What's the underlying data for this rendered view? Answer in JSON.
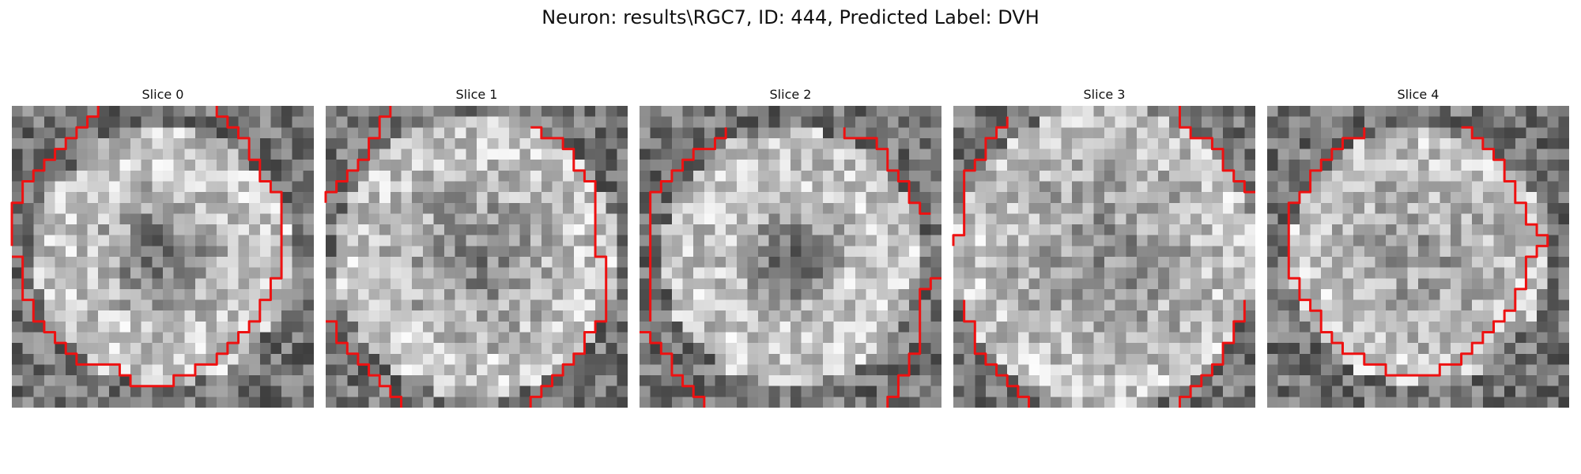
{
  "title": "Neuron: results\\RGC7, ID: 444, Predicted Label: DVH",
  "contour_color": "#ee1111",
  "grid_size": 28,
  "slices": [
    {
      "label": "Slice 0",
      "ring": {
        "inner": 7,
        "outer": 12,
        "dark": 0.35
      },
      "contour": [
        [
          [
            8,
            0
          ],
          [
            8,
            1
          ],
          [
            7,
            1
          ],
          [
            7,
            2
          ],
          [
            6,
            2
          ],
          [
            6,
            3
          ],
          [
            5,
            3
          ],
          [
            5,
            4
          ],
          [
            4,
            4
          ],
          [
            4,
            5
          ],
          [
            3,
            5
          ],
          [
            3,
            6
          ],
          [
            2,
            6
          ],
          [
            2,
            7
          ],
          [
            1,
            7
          ],
          [
            1,
            9
          ],
          [
            0,
            9
          ],
          [
            0,
            12
          ],
          [
            0,
            13
          ]
        ],
        [
          [
            0,
            14
          ],
          [
            1,
            14
          ],
          [
            1,
            18
          ],
          [
            2,
            18
          ],
          [
            2,
            20
          ],
          [
            3,
            20
          ],
          [
            3,
            21
          ],
          [
            4,
            21
          ],
          [
            4,
            22
          ],
          [
            5,
            22
          ],
          [
            5,
            23
          ],
          [
            6,
            23
          ],
          [
            6,
            24
          ],
          [
            7,
            24
          ],
          [
            8,
            24
          ],
          [
            9,
            24
          ],
          [
            10,
            24
          ],
          [
            10,
            25
          ],
          [
            11,
            25
          ],
          [
            11,
            26
          ],
          [
            14,
            26
          ],
          [
            15,
            26
          ],
          [
            15,
            25
          ],
          [
            17,
            25
          ],
          [
            17,
            24
          ],
          [
            19,
            24
          ],
          [
            19,
            23
          ],
          [
            20,
            23
          ],
          [
            20,
            22
          ],
          [
            21,
            22
          ],
          [
            21,
            21
          ],
          [
            22,
            21
          ],
          [
            22,
            20
          ],
          [
            23,
            20
          ],
          [
            23,
            18
          ],
          [
            24,
            18
          ],
          [
            24,
            16
          ],
          [
            25,
            16
          ],
          [
            25,
            8
          ],
          [
            24,
            8
          ],
          [
            24,
            7
          ],
          [
            23,
            7
          ],
          [
            23,
            5
          ],
          [
            22,
            5
          ],
          [
            22,
            3
          ],
          [
            21,
            3
          ],
          [
            21,
            2
          ],
          [
            20,
            2
          ],
          [
            20,
            1
          ],
          [
            19,
            1
          ],
          [
            19,
            0
          ]
        ]
      ]
    },
    {
      "label": "Slice 1",
      "ring": {
        "inner": 9,
        "outer": 13,
        "dark": 0.25
      },
      "contour": [
        [
          [
            6,
            0
          ],
          [
            6,
            1
          ],
          [
            5,
            1
          ],
          [
            5,
            3
          ],
          [
            4,
            3
          ],
          [
            4,
            5
          ],
          [
            3,
            5
          ],
          [
            3,
            6
          ],
          [
            2,
            6
          ],
          [
            2,
            7
          ],
          [
            1,
            7
          ],
          [
            1,
            8
          ],
          [
            0,
            8
          ],
          [
            0,
            9
          ]
        ],
        [
          [
            19,
            2
          ],
          [
            20,
            2
          ],
          [
            20,
            3
          ],
          [
            22,
            3
          ],
          [
            22,
            4
          ],
          [
            23,
            4
          ],
          [
            23,
            6
          ],
          [
            24,
            6
          ],
          [
            24,
            7
          ],
          [
            25,
            7
          ],
          [
            25,
            14
          ],
          [
            26,
            14
          ],
          [
            26,
            20
          ],
          [
            25,
            20
          ],
          [
            25,
            21
          ],
          [
            24,
            21
          ],
          [
            24,
            23
          ],
          [
            23,
            23
          ],
          [
            23,
            24
          ],
          [
            22,
            24
          ],
          [
            22,
            25
          ],
          [
            21,
            25
          ],
          [
            21,
            26
          ],
          [
            20,
            26
          ],
          [
            20,
            27
          ],
          [
            19,
            27
          ],
          [
            19,
            28
          ]
        ],
        [
          [
            0,
            20
          ],
          [
            1,
            20
          ],
          [
            1,
            22
          ],
          [
            2,
            22
          ],
          [
            2,
            23
          ],
          [
            3,
            23
          ],
          [
            3,
            24
          ],
          [
            4,
            24
          ],
          [
            4,
            25
          ],
          [
            5,
            25
          ],
          [
            5,
            26
          ],
          [
            6,
            26
          ],
          [
            6,
            27
          ],
          [
            7,
            27
          ],
          [
            7,
            28
          ]
        ]
      ]
    },
    {
      "label": "Slice 2",
      "ring": {
        "inner": 6,
        "outer": 12,
        "dark": 0.4
      },
      "contour": [
        [
          [
            8,
            2
          ],
          [
            8,
            3
          ],
          [
            7,
            3
          ],
          [
            7,
            4
          ],
          [
            5,
            4
          ],
          [
            5,
            5
          ],
          [
            4,
            5
          ],
          [
            4,
            6
          ],
          [
            3,
            6
          ],
          [
            3,
            7
          ],
          [
            2,
            7
          ],
          [
            2,
            8
          ],
          [
            1,
            8
          ],
          [
            1,
            20
          ]
        ],
        [
          [
            19,
            2
          ],
          [
            19,
            3
          ],
          [
            22,
            3
          ],
          [
            22,
            4
          ],
          [
            23,
            4
          ],
          [
            23,
            6
          ],
          [
            24,
            6
          ],
          [
            24,
            7
          ],
          [
            25,
            7
          ],
          [
            25,
            9
          ],
          [
            26,
            9
          ],
          [
            26,
            10
          ],
          [
            27,
            10
          ]
        ],
        [
          [
            0,
            21
          ],
          [
            1,
            21
          ],
          [
            1,
            22
          ],
          [
            2,
            22
          ],
          [
            2,
            23
          ],
          [
            3,
            23
          ],
          [
            3,
            25
          ],
          [
            4,
            25
          ],
          [
            4,
            26
          ],
          [
            5,
            26
          ],
          [
            5,
            27
          ],
          [
            6,
            27
          ],
          [
            6,
            28
          ]
        ],
        [
          [
            28,
            16
          ],
          [
            27,
            16
          ],
          [
            27,
            17
          ],
          [
            26,
            17
          ],
          [
            26,
            23
          ],
          [
            25,
            23
          ],
          [
            25,
            25
          ],
          [
            24,
            25
          ],
          [
            24,
            27
          ],
          [
            23,
            27
          ],
          [
            23,
            28
          ]
        ]
      ]
    },
    {
      "label": "Slice 3",
      "ring": {
        "inner": 11,
        "outer": 14,
        "dark": 0.2
      },
      "contour": [
        [
          [
            5,
            1
          ],
          [
            5,
            2
          ],
          [
            4,
            2
          ],
          [
            4,
            3
          ],
          [
            3,
            3
          ],
          [
            3,
            5
          ],
          [
            2,
            5
          ],
          [
            2,
            6
          ],
          [
            1,
            6
          ],
          [
            1,
            12
          ],
          [
            0,
            12
          ],
          [
            0,
            13
          ]
        ],
        [
          [
            21,
            0
          ],
          [
            21,
            2
          ],
          [
            22,
            2
          ],
          [
            22,
            3
          ],
          [
            24,
            3
          ],
          [
            24,
            4
          ],
          [
            25,
            4
          ],
          [
            25,
            6
          ],
          [
            26,
            6
          ],
          [
            26,
            7
          ],
          [
            27,
            7
          ],
          [
            27,
            8
          ],
          [
            28,
            8
          ]
        ],
        [
          [
            1,
            18
          ],
          [
            1,
            20
          ],
          [
            2,
            20
          ],
          [
            2,
            23
          ],
          [
            3,
            23
          ],
          [
            3,
            24
          ],
          [
            4,
            24
          ],
          [
            4,
            25
          ],
          [
            5,
            25
          ],
          [
            5,
            26
          ],
          [
            6,
            26
          ],
          [
            6,
            27
          ],
          [
            7,
            27
          ],
          [
            7,
            28
          ]
        ],
        [
          [
            27,
            18
          ],
          [
            27,
            20
          ],
          [
            26,
            20
          ],
          [
            26,
            22
          ],
          [
            25,
            22
          ],
          [
            25,
            24
          ],
          [
            24,
            24
          ],
          [
            24,
            25
          ],
          [
            23,
            25
          ],
          [
            23,
            26
          ],
          [
            22,
            26
          ],
          [
            22,
            27
          ],
          [
            21,
            27
          ],
          [
            21,
            28
          ]
        ]
      ]
    },
    {
      "label": "Slice 4",
      "ring": {
        "inner": 9,
        "outer": 12,
        "dark": 0.15
      },
      "contour": [
        [
          [
            9,
            2
          ],
          [
            9,
            3
          ],
          [
            7,
            3
          ],
          [
            7,
            4
          ],
          [
            6,
            4
          ],
          [
            6,
            5
          ],
          [
            5,
            5
          ],
          [
            5,
            6
          ],
          [
            4,
            6
          ],
          [
            4,
            8
          ],
          [
            3,
            8
          ],
          [
            3,
            9
          ],
          [
            2,
            9
          ],
          [
            2,
            16
          ],
          [
            3,
            16
          ],
          [
            3,
            18
          ],
          [
            4,
            18
          ],
          [
            4,
            19
          ],
          [
            5,
            19
          ],
          [
            5,
            21
          ],
          [
            6,
            21
          ],
          [
            6,
            22
          ],
          [
            7,
            22
          ],
          [
            7,
            23
          ],
          [
            9,
            23
          ],
          [
            9,
            24
          ],
          [
            11,
            24
          ],
          [
            11,
            25
          ],
          [
            16,
            25
          ],
          [
            16,
            24
          ],
          [
            18,
            24
          ],
          [
            18,
            23
          ],
          [
            19,
            23
          ],
          [
            19,
            22
          ],
          [
            20,
            22
          ],
          [
            20,
            21
          ],
          [
            21,
            21
          ],
          [
            21,
            20
          ],
          [
            22,
            20
          ],
          [
            22,
            19
          ],
          [
            23,
            19
          ],
          [
            23,
            17
          ],
          [
            24,
            17
          ],
          [
            24,
            14
          ],
          [
            25,
            14
          ],
          [
            25,
            13
          ],
          [
            26,
            13
          ],
          [
            26,
            12
          ],
          [
            25,
            12
          ],
          [
            25,
            11
          ],
          [
            24,
            11
          ],
          [
            24,
            9
          ],
          [
            23,
            9
          ],
          [
            23,
            7
          ],
          [
            22,
            7
          ],
          [
            22,
            5
          ],
          [
            21,
            5
          ],
          [
            21,
            4
          ],
          [
            20,
            4
          ],
          [
            20,
            3
          ],
          [
            19,
            3
          ],
          [
            19,
            2
          ],
          [
            18,
            2
          ]
        ]
      ]
    }
  ]
}
